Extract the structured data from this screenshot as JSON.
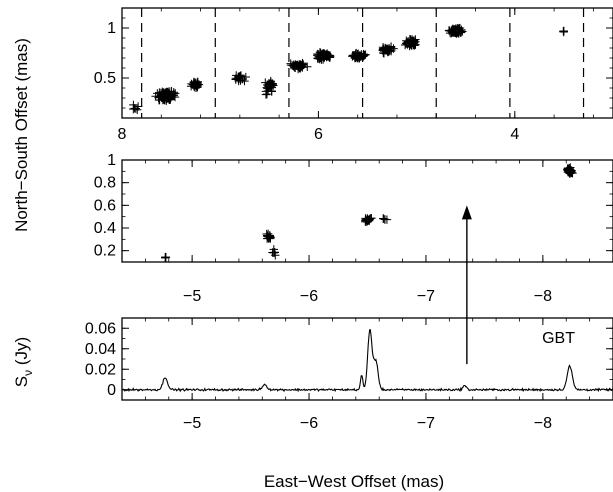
{
  "figure": {
    "y_label_shared": "North−South Offset (mas)",
    "x_label_bottom": "East−West Offset (mas)"
  },
  "chart_data": [
    {
      "type": "scatter",
      "panel": "top",
      "xlim": [
        8.0,
        3.0
      ],
      "ylim": [
        0.1,
        1.2
      ],
      "x_ticks": [
        8,
        6,
        4
      ],
      "y_ticks": [
        0.5,
        1
      ],
      "y_tick_labels": [
        "0.5",
        "1"
      ],
      "x_tick_labels": [
        "8",
        "6",
        "4"
      ],
      "marker": "+",
      "divider_x": [
        7.8,
        7.05,
        6.3,
        5.55,
        4.8,
        4.05,
        3.3
      ],
      "clusters": [
        {
          "x": 7.55,
          "y": 0.32,
          "spread_x": 0.12,
          "spread_y": 0.06,
          "count": 120
        },
        {
          "x": 7.25,
          "y": 0.44,
          "spread_x": 0.06,
          "spread_y": 0.04,
          "count": 30
        },
        {
          "x": 7.85,
          "y": 0.2,
          "spread_x": 0.05,
          "spread_y": 0.05,
          "count": 6
        },
        {
          "x": 6.8,
          "y": 0.5,
          "spread_x": 0.08,
          "spread_y": 0.05,
          "count": 25
        },
        {
          "x": 6.5,
          "y": 0.42,
          "spread_x": 0.07,
          "spread_y": 0.1,
          "count": 30
        },
        {
          "x": 6.2,
          "y": 0.62,
          "spread_x": 0.1,
          "spread_y": 0.05,
          "count": 40
        },
        {
          "x": 5.95,
          "y": 0.72,
          "spread_x": 0.1,
          "spread_y": 0.05,
          "count": 60
        },
        {
          "x": 5.6,
          "y": 0.72,
          "spread_x": 0.1,
          "spread_y": 0.04,
          "count": 40
        },
        {
          "x": 5.3,
          "y": 0.78,
          "spread_x": 0.08,
          "spread_y": 0.04,
          "count": 40
        },
        {
          "x": 5.05,
          "y": 0.85,
          "spread_x": 0.08,
          "spread_y": 0.05,
          "count": 60
        },
        {
          "x": 4.6,
          "y": 0.97,
          "spread_x": 0.1,
          "spread_y": 0.04,
          "count": 70
        },
        {
          "x": 3.5,
          "y": 0.97,
          "spread_x": 0.01,
          "spread_y": 0.02,
          "count": 3
        }
      ]
    },
    {
      "type": "scatter",
      "panel": "middle",
      "xlim": [
        -4.4,
        -8.6
      ],
      "ylim": [
        0.1,
        1.0
      ],
      "x_ticks": [
        -5,
        -6,
        -7,
        -8
      ],
      "x_tick_labels": [
        "−5",
        "−6",
        "−7",
        "−8"
      ],
      "y_ticks": [
        0.2,
        0.4,
        0.6,
        0.8,
        1
      ],
      "y_tick_labels": [
        "0.2",
        "0.4",
        "0.6",
        "0.8",
        "1"
      ],
      "marker": "+",
      "arrow": {
        "x": -7.35,
        "y_from": 0.025,
        "y_to": 0.6
      },
      "clusters": [
        {
          "x": -4.77,
          "y": 0.14,
          "spread_x": 0.01,
          "spread_y": 0.01,
          "count": 6
        },
        {
          "x": -5.65,
          "y": 0.32,
          "spread_x": 0.04,
          "spread_y": 0.04,
          "count": 14
        },
        {
          "x": -5.7,
          "y": 0.18,
          "spread_x": 0.03,
          "spread_y": 0.05,
          "count": 6
        },
        {
          "x": -6.5,
          "y": 0.47,
          "spread_x": 0.04,
          "spread_y": 0.03,
          "count": 18
        },
        {
          "x": -6.65,
          "y": 0.48,
          "spread_x": 0.03,
          "spread_y": 0.02,
          "count": 5
        },
        {
          "x": -8.23,
          "y": 0.9,
          "spread_x": 0.03,
          "spread_y": 0.04,
          "count": 40
        }
      ]
    },
    {
      "type": "line",
      "panel": "bottom",
      "ylabel": "S_ν (Jy)",
      "annotation": "GBT",
      "xlim": [
        -4.4,
        -8.6
      ],
      "ylim": [
        -0.01,
        0.07
      ],
      "x_ticks": [
        -5,
        -6,
        -7,
        -8
      ],
      "x_tick_labels": [
        "−5",
        "−6",
        "−7",
        "−8"
      ],
      "y_ticks": [
        0,
        0.02,
        0.04,
        0.06
      ],
      "y_tick_labels": [
        "0",
        "0.02",
        "0.04",
        "0.06"
      ],
      "noise_level": 0.0015,
      "peaks": [
        {
          "x": -4.77,
          "height": 0.012,
          "width": 0.02
        },
        {
          "x": -5.62,
          "height": 0.005,
          "width": 0.02
        },
        {
          "x": -6.45,
          "height": 0.014,
          "width": 0.01
        },
        {
          "x": -6.52,
          "height": 0.058,
          "width": 0.018
        },
        {
          "x": -6.57,
          "height": 0.028,
          "width": 0.02
        },
        {
          "x": -7.33,
          "height": 0.004,
          "width": 0.015
        },
        {
          "x": -8.23,
          "height": 0.023,
          "width": 0.022
        }
      ]
    }
  ]
}
